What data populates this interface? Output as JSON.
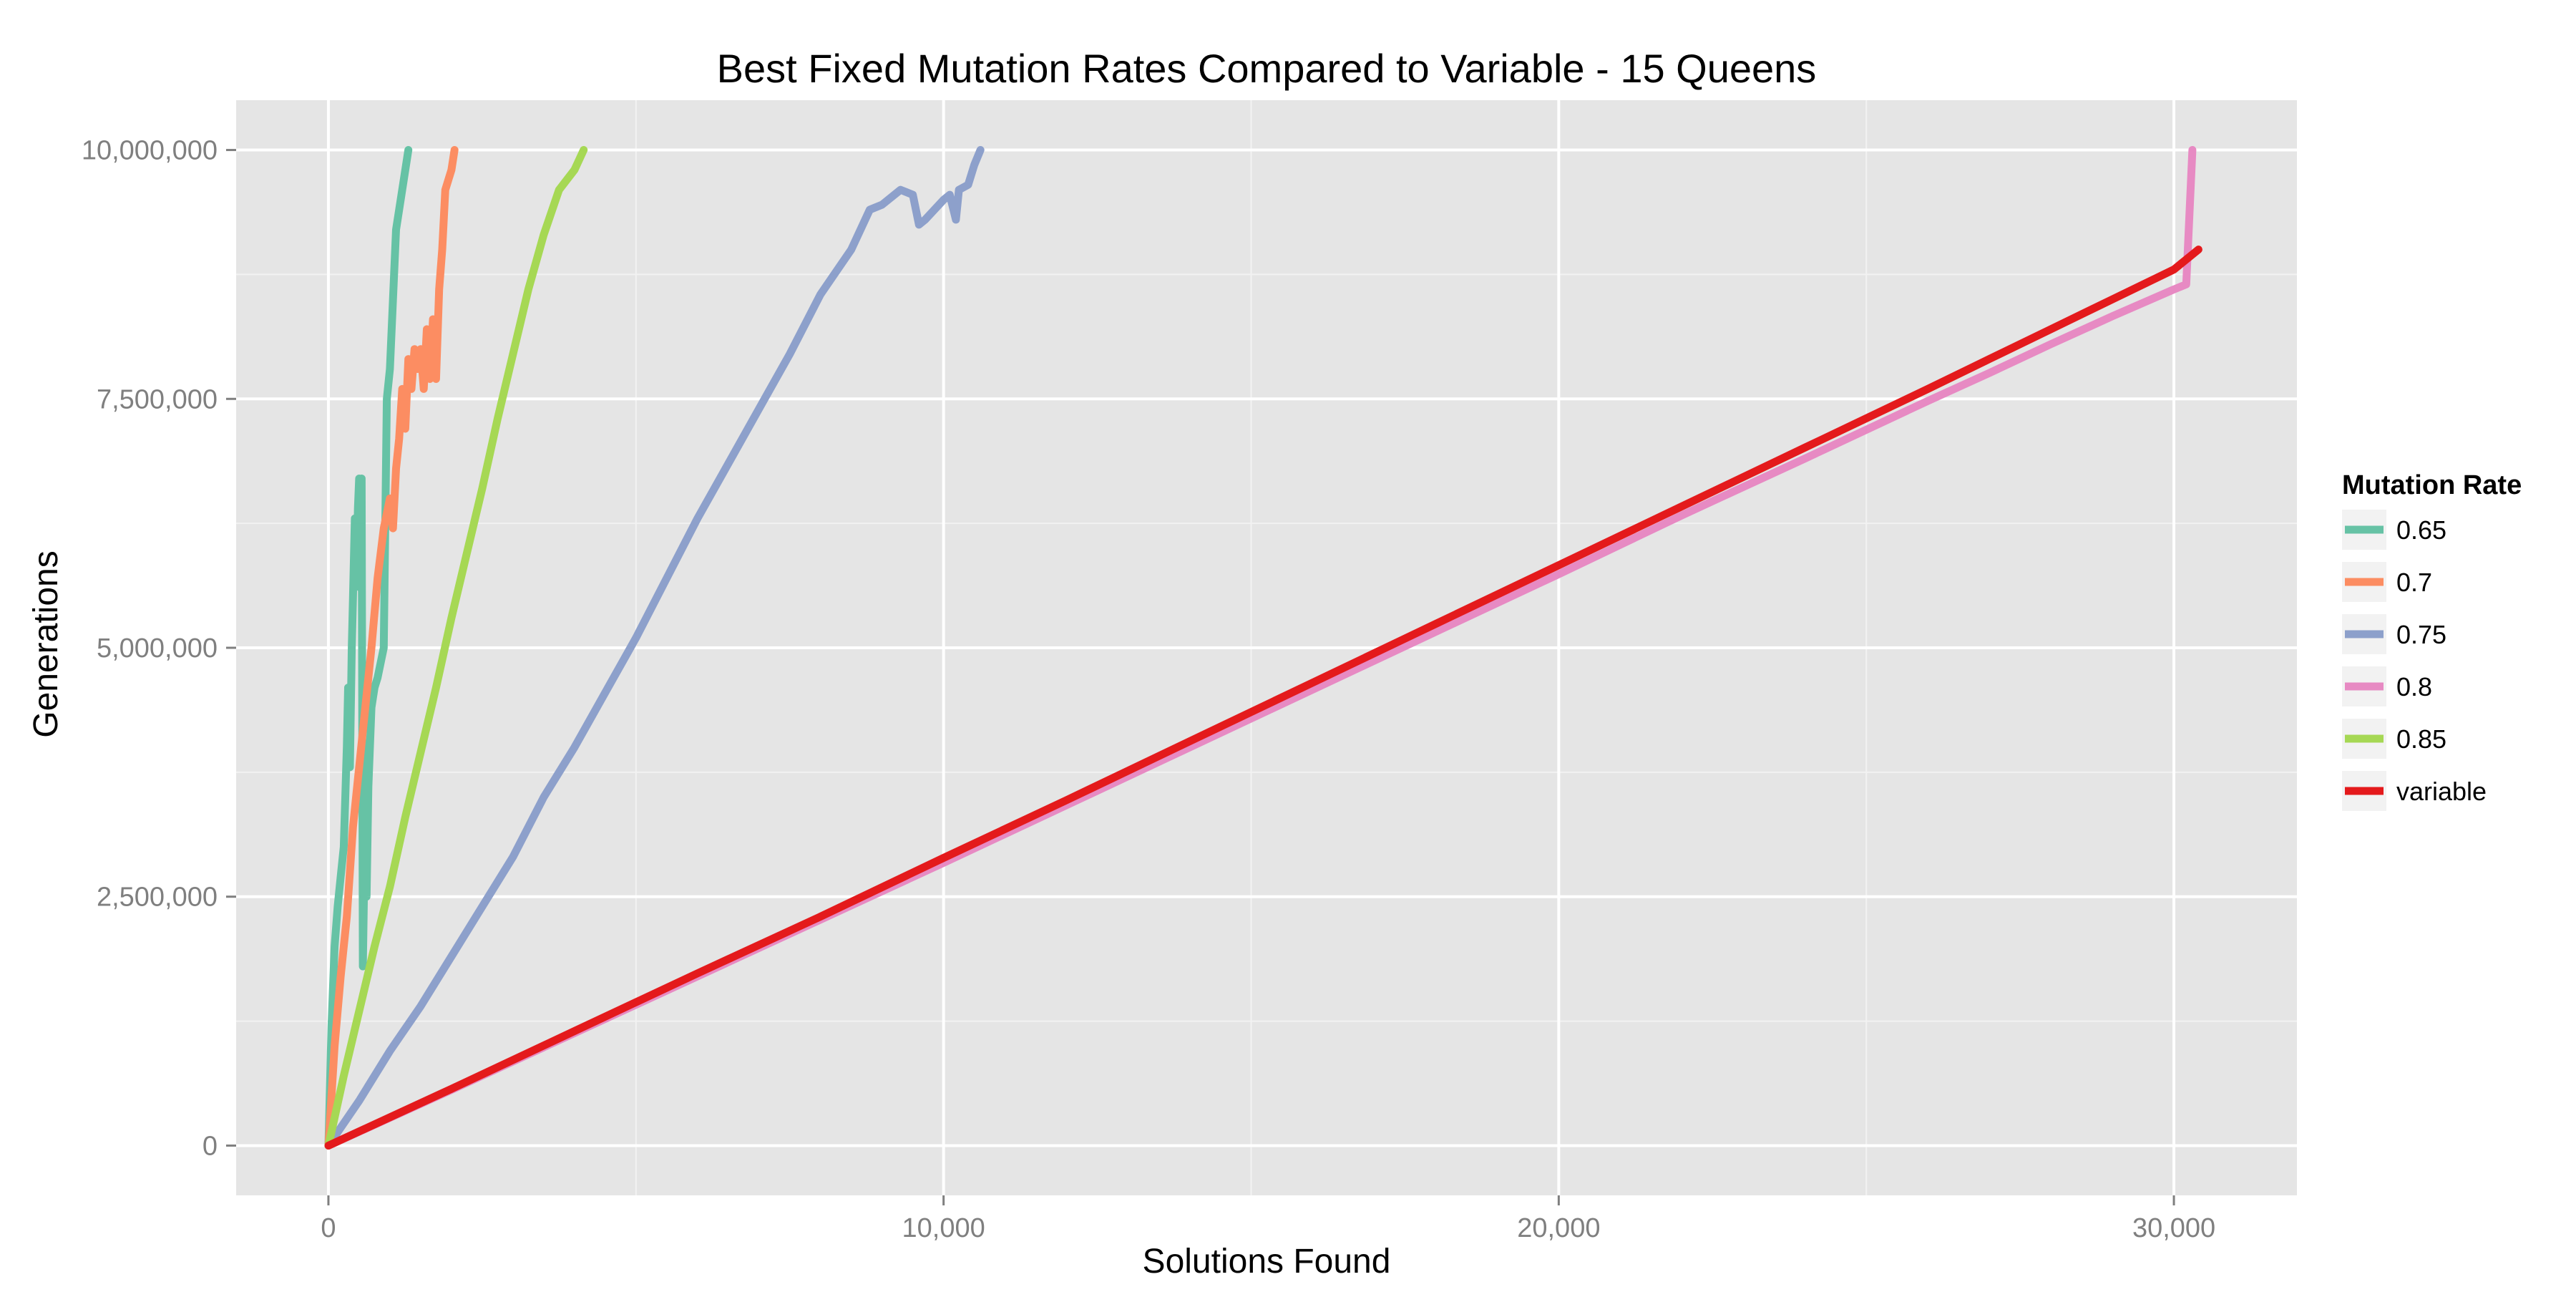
{
  "chart_data": {
    "type": "line",
    "title": "Best Fixed Mutation Rates Compared to Variable - 15 Queens",
    "xlabel": "Solutions Found",
    "ylabel": "Generations",
    "xlim": [
      -1500,
      32000
    ],
    "ylim": [
      -500000,
      10500000
    ],
    "x_ticks": [
      0,
      10000,
      20000,
      30000
    ],
    "x_tick_labels": [
      "0",
      "10,000",
      "20,000",
      "30,000"
    ],
    "y_ticks": [
      0,
      2500000,
      5000000,
      7500000,
      10000000
    ],
    "y_tick_labels": [
      "0",
      "2,500,000",
      "5,000,000",
      "7,500,000",
      "10,000,000"
    ],
    "grid": true,
    "legend": {
      "title": "Mutation Rate",
      "position": "right"
    },
    "series": [
      {
        "name": "0.65",
        "color": "#66c2a5",
        "points": [
          [
            0,
            0
          ],
          [
            50,
            1200000
          ],
          [
            100,
            2000000
          ],
          [
            150,
            2400000
          ],
          [
            200,
            2700000
          ],
          [
            250,
            3000000
          ],
          [
            300,
            4000000
          ],
          [
            320,
            4600000
          ],
          [
            350,
            3800000
          ],
          [
            380,
            5000000
          ],
          [
            400,
            5500000
          ],
          [
            430,
            6300000
          ],
          [
            460,
            5800000
          ],
          [
            480,
            6400000
          ],
          [
            500,
            6700000
          ],
          [
            520,
            5600000
          ],
          [
            540,
            6700000
          ],
          [
            560,
            1800000
          ],
          [
            580,
            2600000
          ],
          [
            600,
            3200000
          ],
          [
            620,
            2500000
          ],
          [
            650,
            3600000
          ],
          [
            700,
            4400000
          ],
          [
            750,
            4600000
          ],
          [
            800,
            4700000
          ],
          [
            900,
            5000000
          ],
          [
            950,
            7500000
          ],
          [
            1000,
            7800000
          ],
          [
            1100,
            9200000
          ],
          [
            1200,
            9600000
          ],
          [
            1250,
            9800000
          ],
          [
            1300,
            10000000
          ]
        ]
      },
      {
        "name": "0.7",
        "color": "#fc8d62",
        "points": [
          [
            0,
            0
          ],
          [
            100,
            1000000
          ],
          [
            200,
            1700000
          ],
          [
            300,
            2300000
          ],
          [
            400,
            3200000
          ],
          [
            500,
            3800000
          ],
          [
            600,
            4400000
          ],
          [
            700,
            5000000
          ],
          [
            800,
            5700000
          ],
          [
            900,
            6200000
          ],
          [
            1000,
            6500000
          ],
          [
            1050,
            6200000
          ],
          [
            1100,
            6800000
          ],
          [
            1150,
            7100000
          ],
          [
            1200,
            7600000
          ],
          [
            1250,
            7200000
          ],
          [
            1300,
            7900000
          ],
          [
            1350,
            7600000
          ],
          [
            1400,
            8000000
          ],
          [
            1450,
            7800000
          ],
          [
            1500,
            8000000
          ],
          [
            1550,
            7600000
          ],
          [
            1600,
            8200000
          ],
          [
            1650,
            7700000
          ],
          [
            1700,
            8300000
          ],
          [
            1750,
            7700000
          ],
          [
            1800,
            8600000
          ],
          [
            1850,
            9000000
          ],
          [
            1900,
            9600000
          ],
          [
            1950,
            9700000
          ],
          [
            2000,
            9800000
          ],
          [
            2050,
            10000000
          ]
        ]
      },
      {
        "name": "0.75",
        "color": "#8da0cb",
        "points": [
          [
            0,
            0
          ],
          [
            500,
            450000
          ],
          [
            1000,
            950000
          ],
          [
            1500,
            1400000
          ],
          [
            2000,
            1900000
          ],
          [
            2500,
            2400000
          ],
          [
            3000,
            2900000
          ],
          [
            3500,
            3500000
          ],
          [
            4000,
            4000000
          ],
          [
            4500,
            4550000
          ],
          [
            5000,
            5100000
          ],
          [
            5500,
            5700000
          ],
          [
            6000,
            6300000
          ],
          [
            6500,
            6850000
          ],
          [
            7000,
            7400000
          ],
          [
            7500,
            7950000
          ],
          [
            8000,
            8550000
          ],
          [
            8500,
            9000000
          ],
          [
            8800,
            9400000
          ],
          [
            9000,
            9450000
          ],
          [
            9300,
            9600000
          ],
          [
            9500,
            9550000
          ],
          [
            9600,
            9250000
          ],
          [
            9700,
            9300000
          ],
          [
            10000,
            9500000
          ],
          [
            10100,
            9550000
          ],
          [
            10200,
            9300000
          ],
          [
            10250,
            9600000
          ],
          [
            10400,
            9650000
          ],
          [
            10500,
            9850000
          ],
          [
            10600,
            10000000
          ]
        ]
      },
      {
        "name": "0.8",
        "color": "#e78ac3",
        "points": [
          [
            0,
            0
          ],
          [
            2000,
            560000
          ],
          [
            4000,
            1130000
          ],
          [
            6000,
            1700000
          ],
          [
            8000,
            2270000
          ],
          [
            10000,
            2840000
          ],
          [
            12000,
            3420000
          ],
          [
            14000,
            4000000
          ],
          [
            16000,
            4580000
          ],
          [
            18000,
            5160000
          ],
          [
            20000,
            5740000
          ],
          [
            22000,
            6330000
          ],
          [
            24000,
            6900000
          ],
          [
            26000,
            7480000
          ],
          [
            27000,
            7760000
          ],
          [
            28000,
            8050000
          ],
          [
            29000,
            8330000
          ],
          [
            30000,
            8600000
          ],
          [
            30200,
            8650000
          ],
          [
            30300,
            10000000
          ]
        ]
      },
      {
        "name": "0.85",
        "color": "#a6d854",
        "points": [
          [
            0,
            0
          ],
          [
            250,
            700000
          ],
          [
            500,
            1350000
          ],
          [
            750,
            2000000
          ],
          [
            1000,
            2600000
          ],
          [
            1250,
            3300000
          ],
          [
            1500,
            3950000
          ],
          [
            1750,
            4600000
          ],
          [
            2000,
            5300000
          ],
          [
            2250,
            5950000
          ],
          [
            2500,
            6600000
          ],
          [
            2750,
            7300000
          ],
          [
            3000,
            7950000
          ],
          [
            3250,
            8600000
          ],
          [
            3500,
            9150000
          ],
          [
            3750,
            9600000
          ],
          [
            4000,
            9800000
          ],
          [
            4150,
            10000000
          ]
        ]
      },
      {
        "name": "variable",
        "color": "#e41a1c",
        "points": [
          [
            0,
            0
          ],
          [
            2000,
            570000
          ],
          [
            4000,
            1150000
          ],
          [
            6000,
            1730000
          ],
          [
            8000,
            2300000
          ],
          [
            10000,
            2890000
          ],
          [
            12000,
            3470000
          ],
          [
            14000,
            4060000
          ],
          [
            16000,
            4650000
          ],
          [
            18000,
            5240000
          ],
          [
            20000,
            5830000
          ],
          [
            22000,
            6420000
          ],
          [
            24000,
            7010000
          ],
          [
            26000,
            7600000
          ],
          [
            27000,
            7900000
          ],
          [
            28000,
            8200000
          ],
          [
            29000,
            8500000
          ],
          [
            30000,
            8800000
          ],
          [
            30400,
            9000000
          ]
        ]
      }
    ]
  }
}
